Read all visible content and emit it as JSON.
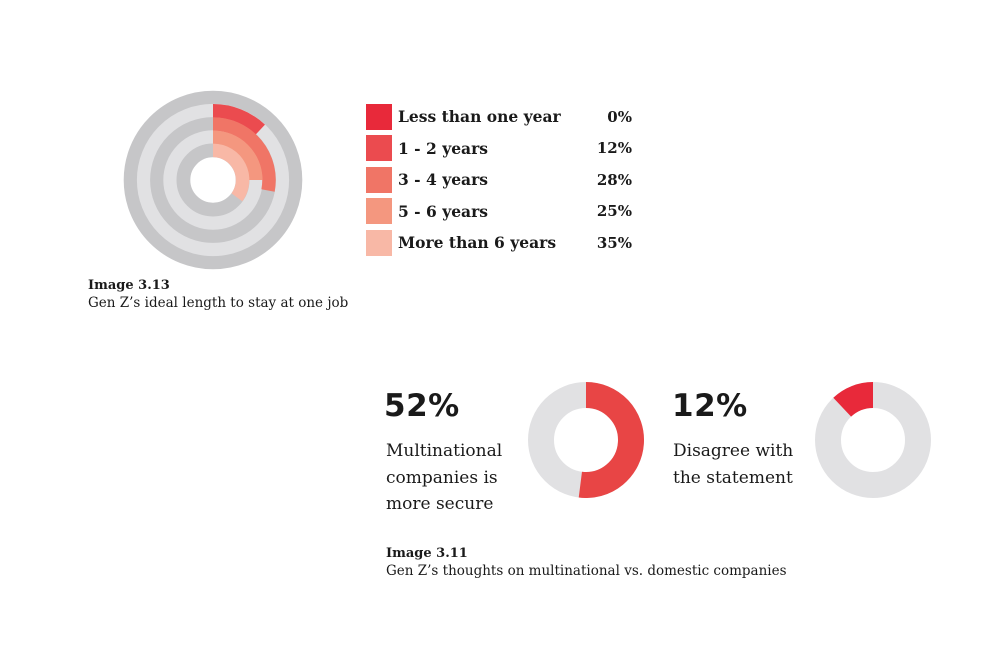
{
  "chart_data": [
    {
      "type": "radial-bar",
      "categories": [
        "Less than one year",
        "1 - 2 years",
        "3 - 4 years",
        "5 - 6 years",
        "More than 6 years"
      ],
      "values": [
        0,
        12,
        28,
        25,
        35
      ],
      "value_labels": [
        "0%",
        "12%",
        "28%",
        "25%",
        "35%"
      ],
      "colors": [
        "#e8293a",
        "#eb4b4f",
        "#f07566",
        "#f4977f",
        "#f8b8a6"
      ],
      "track_colors": [
        "#c6c6c8",
        "#e1e1e3"
      ],
      "legend_placement": "right",
      "caption_title": "Image 3.13",
      "caption_text": "Gen Z’s ideal length to stay at one job"
    },
    {
      "type": "pie",
      "caption_title": "Image 3.11",
      "caption_text": "Gen Z’s thoughts on multinational vs. domestic companies",
      "donuts": [
        {
          "value": 52,
          "value_label": "52%",
          "description": "Multinational companies is more secure",
          "color": "#e84545",
          "track_color": "#e1e1e3"
        },
        {
          "value": 12,
          "value_label": "12%",
          "description": "Disagree with the statement",
          "color": "#e8293a",
          "track_color": "#e1e1e3"
        }
      ]
    }
  ]
}
